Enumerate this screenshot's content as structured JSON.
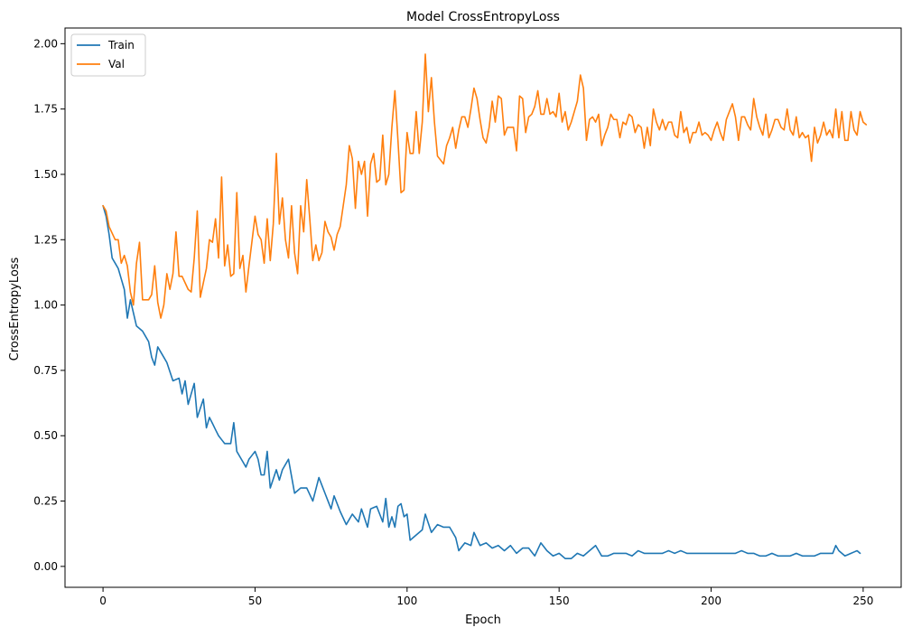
{
  "chart_data": {
    "type": "line",
    "title": "Model CrossEntropyLoss",
    "xlabel": "Epoch",
    "ylabel": "CrossEntropyLoss",
    "xlim": [
      -12.5,
      262.5
    ],
    "ylim": [
      -0.08,
      2.06
    ],
    "xticks": [
      0,
      50,
      100,
      150,
      200,
      250
    ],
    "yticks": [
      0.0,
      0.25,
      0.5,
      0.75,
      1.0,
      1.25,
      1.5,
      1.75,
      2.0
    ],
    "grid": false,
    "legend_position": "top-left",
    "series": [
      {
        "name": "Train",
        "color": "#1f77b4",
        "x_start": 0,
        "x_step": 1,
        "values": []
      },
      {
        "name": "Val",
        "color": "#ff7f0e",
        "x_start": 0,
        "x_step": 1,
        "values": []
      }
    ],
    "train_keypoints": [
      [
        0,
        1.38
      ],
      [
        1,
        1.34
      ],
      [
        2,
        1.27
      ],
      [
        3,
        1.18
      ],
      [
        5,
        1.14
      ],
      [
        7,
        1.06
      ],
      [
        8,
        0.95
      ],
      [
        9,
        1.02
      ],
      [
        11,
        0.92
      ],
      [
        13,
        0.9
      ],
      [
        15,
        0.86
      ],
      [
        16,
        0.8
      ],
      [
        17,
        0.77
      ],
      [
        18,
        0.84
      ],
      [
        21,
        0.78
      ],
      [
        23,
        0.71
      ],
      [
        25,
        0.72
      ],
      [
        26,
        0.66
      ],
      [
        27,
        0.71
      ],
      [
        28,
        0.62
      ],
      [
        30,
        0.7
      ],
      [
        31,
        0.57
      ],
      [
        33,
        0.64
      ],
      [
        34,
        0.53
      ],
      [
        35,
        0.57
      ],
      [
        38,
        0.5
      ],
      [
        40,
        0.47
      ],
      [
        42,
        0.47
      ],
      [
        43,
        0.55
      ],
      [
        44,
        0.44
      ],
      [
        47,
        0.38
      ],
      [
        48,
        0.41
      ],
      [
        50,
        0.44
      ],
      [
        51,
        0.41
      ],
      [
        52,
        0.35
      ],
      [
        53,
        0.35
      ],
      [
        54,
        0.44
      ],
      [
        55,
        0.3
      ],
      [
        57,
        0.37
      ],
      [
        58,
        0.33
      ],
      [
        59,
        0.37
      ],
      [
        61,
        0.41
      ],
      [
        63,
        0.28
      ],
      [
        65,
        0.3
      ],
      [
        67,
        0.3
      ],
      [
        69,
        0.25
      ],
      [
        71,
        0.34
      ],
      [
        73,
        0.28
      ],
      [
        75,
        0.22
      ],
      [
        76,
        0.27
      ],
      [
        78,
        0.21
      ],
      [
        80,
        0.16
      ],
      [
        82,
        0.2
      ],
      [
        84,
        0.17
      ],
      [
        85,
        0.22
      ],
      [
        87,
        0.15
      ],
      [
        88,
        0.22
      ],
      [
        90,
        0.23
      ],
      [
        92,
        0.17
      ],
      [
        93,
        0.26
      ],
      [
        94,
        0.15
      ],
      [
        95,
        0.19
      ],
      [
        96,
        0.15
      ],
      [
        97,
        0.23
      ],
      [
        98,
        0.24
      ],
      [
        99,
        0.19
      ],
      [
        100,
        0.2
      ],
      [
        101,
        0.1
      ],
      [
        103,
        0.12
      ],
      [
        105,
        0.14
      ],
      [
        106,
        0.2
      ],
      [
        108,
        0.13
      ],
      [
        110,
        0.16
      ],
      [
        112,
        0.15
      ],
      [
        114,
        0.15
      ],
      [
        116,
        0.11
      ],
      [
        117,
        0.06
      ],
      [
        119,
        0.09
      ],
      [
        121,
        0.08
      ],
      [
        122,
        0.13
      ],
      [
        124,
        0.08
      ],
      [
        126,
        0.09
      ],
      [
        128,
        0.07
      ],
      [
        130,
        0.08
      ],
      [
        132,
        0.06
      ],
      [
        134,
        0.08
      ],
      [
        136,
        0.05
      ],
      [
        138,
        0.07
      ],
      [
        140,
        0.07
      ],
      [
        142,
        0.04
      ],
      [
        144,
        0.09
      ],
      [
        146,
        0.06
      ],
      [
        148,
        0.04
      ],
      [
        150,
        0.05
      ],
      [
        152,
        0.03
      ],
      [
        154,
        0.03
      ],
      [
        156,
        0.05
      ],
      [
        158,
        0.04
      ],
      [
        160,
        0.06
      ],
      [
        162,
        0.08
      ],
      [
        164,
        0.04
      ],
      [
        166,
        0.04
      ],
      [
        168,
        0.05
      ],
      [
        170,
        0.05
      ],
      [
        172,
        0.05
      ],
      [
        174,
        0.04
      ],
      [
        176,
        0.06
      ],
      [
        178,
        0.05
      ],
      [
        180,
        0.05
      ],
      [
        182,
        0.05
      ],
      [
        184,
        0.05
      ],
      [
        186,
        0.06
      ],
      [
        188,
        0.05
      ],
      [
        190,
        0.06
      ],
      [
        192,
        0.05
      ],
      [
        194,
        0.05
      ],
      [
        196,
        0.05
      ],
      [
        198,
        0.05
      ],
      [
        200,
        0.05
      ],
      [
        202,
        0.05
      ],
      [
        204,
        0.05
      ],
      [
        206,
        0.05
      ],
      [
        208,
        0.05
      ],
      [
        210,
        0.06
      ],
      [
        212,
        0.05
      ],
      [
        214,
        0.05
      ],
      [
        216,
        0.04
      ],
      [
        218,
        0.04
      ],
      [
        220,
        0.05
      ],
      [
        222,
        0.04
      ],
      [
        224,
        0.04
      ],
      [
        226,
        0.04
      ],
      [
        228,
        0.05
      ],
      [
        230,
        0.04
      ],
      [
        232,
        0.04
      ],
      [
        234,
        0.04
      ],
      [
        236,
        0.05
      ],
      [
        238,
        0.05
      ],
      [
        240,
        0.05
      ],
      [
        241,
        0.08
      ],
      [
        242,
        0.06
      ],
      [
        244,
        0.04
      ],
      [
        246,
        0.05
      ],
      [
        248,
        0.06
      ],
      [
        249,
        0.05
      ]
    ],
    "val_keypoints": [
      [
        0,
        1.38
      ],
      [
        1,
        1.36
      ],
      [
        2,
        1.3
      ],
      [
        4,
        1.25
      ],
      [
        5,
        1.25
      ],
      [
        6,
        1.16
      ],
      [
        7,
        1.19
      ],
      [
        8,
        1.15
      ],
      [
        9,
        1.05
      ],
      [
        10,
        1.0
      ],
      [
        11,
        1.16
      ],
      [
        12,
        1.24
      ],
      [
        13,
        1.02
      ],
      [
        15,
        1.02
      ],
      [
        16,
        1.04
      ],
      [
        17,
        1.15
      ],
      [
        18,
        1.01
      ],
      [
        19,
        0.95
      ],
      [
        20,
        1.0
      ],
      [
        21,
        1.12
      ],
      [
        22,
        1.06
      ],
      [
        23,
        1.12
      ],
      [
        24,
        1.28
      ],
      [
        25,
        1.11
      ],
      [
        26,
        1.11
      ],
      [
        28,
        1.06
      ],
      [
        29,
        1.05
      ],
      [
        30,
        1.18
      ],
      [
        31,
        1.36
      ],
      [
        32,
        1.03
      ],
      [
        34,
        1.14
      ],
      [
        35,
        1.25
      ],
      [
        36,
        1.24
      ],
      [
        37,
        1.33
      ],
      [
        38,
        1.18
      ],
      [
        39,
        1.49
      ],
      [
        40,
        1.15
      ],
      [
        41,
        1.23
      ],
      [
        42,
        1.11
      ],
      [
        43,
        1.12
      ],
      [
        44,
        1.43
      ],
      [
        45,
        1.14
      ],
      [
        46,
        1.19
      ],
      [
        47,
        1.05
      ],
      [
        48,
        1.15
      ],
      [
        50,
        1.34
      ],
      [
        51,
        1.27
      ],
      [
        52,
        1.25
      ],
      [
        53,
        1.16
      ],
      [
        54,
        1.33
      ],
      [
        55,
        1.17
      ],
      [
        56,
        1.31
      ],
      [
        57,
        1.58
      ],
      [
        58,
        1.31
      ],
      [
        59,
        1.41
      ],
      [
        60,
        1.25
      ],
      [
        61,
        1.18
      ],
      [
        62,
        1.38
      ],
      [
        63,
        1.2
      ],
      [
        64,
        1.12
      ],
      [
        65,
        1.38
      ],
      [
        66,
        1.28
      ],
      [
        67,
        1.48
      ],
      [
        68,
        1.33
      ],
      [
        69,
        1.17
      ],
      [
        70,
        1.23
      ],
      [
        71,
        1.17
      ],
      [
        72,
        1.2
      ],
      [
        73,
        1.32
      ],
      [
        74,
        1.28
      ],
      [
        75,
        1.26
      ],
      [
        76,
        1.21
      ],
      [
        77,
        1.27
      ],
      [
        78,
        1.3
      ],
      [
        79,
        1.38
      ],
      [
        80,
        1.46
      ],
      [
        81,
        1.61
      ],
      [
        82,
        1.56
      ],
      [
        83,
        1.37
      ],
      [
        84,
        1.55
      ],
      [
        85,
        1.5
      ],
      [
        86,
        1.55
      ],
      [
        87,
        1.34
      ],
      [
        88,
        1.54
      ],
      [
        89,
        1.58
      ],
      [
        90,
        1.47
      ],
      [
        91,
        1.48
      ],
      [
        92,
        1.65
      ],
      [
        93,
        1.46
      ],
      [
        94,
        1.5
      ],
      [
        95,
        1.68
      ],
      [
        96,
        1.82
      ],
      [
        97,
        1.63
      ],
      [
        98,
        1.43
      ],
      [
        99,
        1.44
      ],
      [
        100,
        1.66
      ],
      [
        101,
        1.58
      ],
      [
        102,
        1.58
      ],
      [
        103,
        1.74
      ],
      [
        104,
        1.58
      ],
      [
        105,
        1.7
      ],
      [
        106,
        1.96
      ],
      [
        107,
        1.74
      ],
      [
        108,
        1.87
      ],
      [
        109,
        1.7
      ],
      [
        110,
        1.57
      ],
      [
        112,
        1.54
      ],
      [
        113,
        1.61
      ],
      [
        114,
        1.64
      ],
      [
        115,
        1.68
      ],
      [
        116,
        1.6
      ],
      [
        117,
        1.67
      ],
      [
        118,
        1.72
      ],
      [
        119,
        1.72
      ],
      [
        120,
        1.68
      ],
      [
        121,
        1.75
      ],
      [
        122,
        1.83
      ],
      [
        123,
        1.79
      ],
      [
        124,
        1.71
      ],
      [
        125,
        1.64
      ],
      [
        126,
        1.62
      ],
      [
        127,
        1.68
      ],
      [
        128,
        1.78
      ],
      [
        129,
        1.7
      ],
      [
        130,
        1.8
      ],
      [
        131,
        1.79
      ],
      [
        132,
        1.65
      ],
      [
        133,
        1.68
      ],
      [
        135,
        1.68
      ],
      [
        136,
        1.59
      ],
      [
        137,
        1.8
      ],
      [
        138,
        1.79
      ],
      [
        139,
        1.66
      ],
      [
        140,
        1.72
      ],
      [
        141,
        1.73
      ],
      [
        142,
        1.76
      ],
      [
        143,
        1.82
      ],
      [
        144,
        1.73
      ],
      [
        145,
        1.73
      ],
      [
        146,
        1.79
      ],
      [
        147,
        1.73
      ],
      [
        148,
        1.74
      ],
      [
        149,
        1.72
      ],
      [
        150,
        1.81
      ],
      [
        151,
        1.7
      ],
      [
        152,
        1.74
      ],
      [
        153,
        1.67
      ],
      [
        154,
        1.7
      ],
      [
        155,
        1.74
      ],
      [
        156,
        1.78
      ],
      [
        157,
        1.88
      ],
      [
        158,
        1.83
      ],
      [
        159,
        1.63
      ],
      [
        160,
        1.71
      ],
      [
        161,
        1.72
      ],
      [
        162,
        1.7
      ],
      [
        163,
        1.73
      ],
      [
        164,
        1.61
      ],
      [
        165,
        1.65
      ],
      [
        166,
        1.68
      ],
      [
        167,
        1.73
      ],
      [
        168,
        1.71
      ],
      [
        169,
        1.71
      ],
      [
        170,
        1.64
      ],
      [
        171,
        1.7
      ],
      [
        172,
        1.69
      ],
      [
        173,
        1.73
      ],
      [
        174,
        1.72
      ],
      [
        175,
        1.66
      ],
      [
        176,
        1.69
      ],
      [
        177,
        1.68
      ],
      [
        178,
        1.6
      ],
      [
        179,
        1.68
      ],
      [
        180,
        1.61
      ],
      [
        181,
        1.75
      ],
      [
        182,
        1.7
      ],
      [
        183,
        1.67
      ],
      [
        184,
        1.71
      ],
      [
        185,
        1.67
      ],
      [
        186,
        1.7
      ],
      [
        187,
        1.7
      ],
      [
        188,
        1.65
      ],
      [
        189,
        1.64
      ],
      [
        190,
        1.74
      ],
      [
        191,
        1.66
      ],
      [
        192,
        1.68
      ],
      [
        193,
        1.62
      ],
      [
        194,
        1.66
      ],
      [
        195,
        1.66
      ],
      [
        196,
        1.7
      ],
      [
        197,
        1.65
      ],
      [
        198,
        1.66
      ],
      [
        199,
        1.65
      ],
      [
        200,
        1.63
      ],
      [
        201,
        1.67
      ],
      [
        202,
        1.7
      ],
      [
        203,
        1.66
      ],
      [
        204,
        1.63
      ],
      [
        205,
        1.71
      ],
      [
        206,
        1.74
      ],
      [
        207,
        1.77
      ],
      [
        208,
        1.72
      ],
      [
        209,
        1.63
      ],
      [
        210,
        1.72
      ],
      [
        211,
        1.72
      ],
      [
        212,
        1.69
      ],
      [
        213,
        1.67
      ],
      [
        214,
        1.79
      ],
      [
        215,
        1.72
      ],
      [
        216,
        1.68
      ],
      [
        217,
        1.65
      ],
      [
        218,
        1.73
      ],
      [
        219,
        1.64
      ],
      [
        220,
        1.67
      ],
      [
        221,
        1.71
      ],
      [
        222,
        1.71
      ],
      [
        223,
        1.68
      ],
      [
        224,
        1.67
      ],
      [
        225,
        1.75
      ],
      [
        226,
        1.67
      ],
      [
        227,
        1.65
      ],
      [
        228,
        1.72
      ],
      [
        229,
        1.64
      ],
      [
        230,
        1.66
      ],
      [
        231,
        1.64
      ],
      [
        232,
        1.65
      ],
      [
        233,
        1.55
      ],
      [
        234,
        1.68
      ],
      [
        235,
        1.62
      ],
      [
        236,
        1.65
      ],
      [
        237,
        1.7
      ],
      [
        238,
        1.65
      ],
      [
        239,
        1.67
      ],
      [
        240,
        1.64
      ],
      [
        241,
        1.75
      ],
      [
        242,
        1.64
      ],
      [
        243,
        1.74
      ],
      [
        244,
        1.63
      ],
      [
        245,
        1.63
      ],
      [
        246,
        1.74
      ],
      [
        247,
        1.67
      ],
      [
        248,
        1.65
      ],
      [
        249,
        1.74
      ],
      [
        250,
        1.7
      ],
      [
        251,
        1.69
      ]
    ]
  }
}
